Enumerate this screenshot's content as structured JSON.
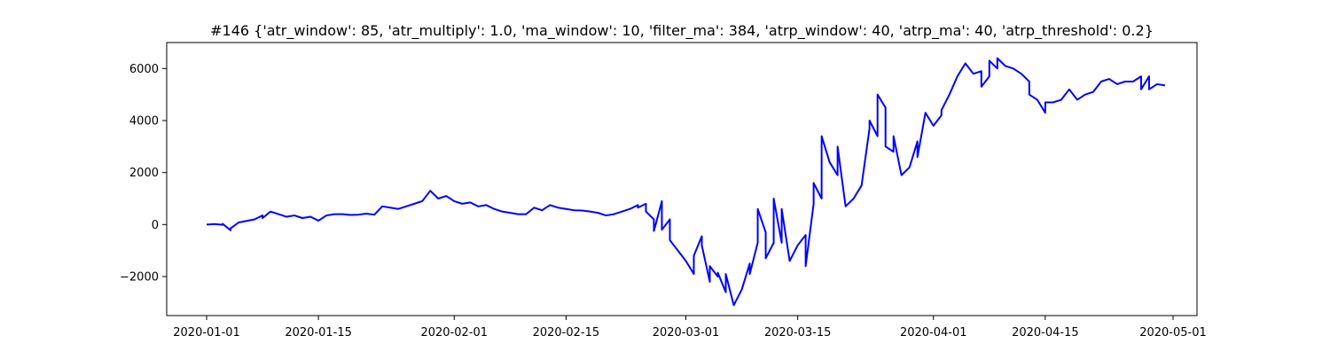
{
  "chart_data": {
    "type": "line",
    "title": "#146 {'atr_window': 85, 'atr_multiply': 1.0, 'ma_window': 10, 'filter_ma': 384, 'atrp_window': 40, 'atrp_ma': 40, 'atrp_threshold': 0.2}",
    "xlabel": "",
    "ylabel": "",
    "xlim": [
      "2019-12-27",
      "2020-05-04"
    ],
    "ylim": [
      -3500,
      7000
    ],
    "x_ticks": [
      "2020-01-01",
      "2020-01-15",
      "2020-02-01",
      "2020-02-15",
      "2020-03-01",
      "2020-03-15",
      "2020-04-01",
      "2020-04-15",
      "2020-05-01"
    ],
    "y_ticks": [
      -2000,
      0,
      2000,
      4000,
      6000
    ],
    "grid": false,
    "legend": "none",
    "series": [
      {
        "color": "#0000ff",
        "x": [
          "2020-01-01",
          "2020-01-02",
          "2020-01-03",
          "2020-01-03",
          "2020-01-04",
          "2020-01-04",
          "2020-01-05",
          "2020-01-07",
          "2020-01-08",
          "2020-01-08",
          "2020-01-09",
          "2020-01-10",
          "2020-01-11",
          "2020-01-12",
          "2020-01-13",
          "2020-01-14",
          "2020-01-15",
          "2020-01-16",
          "2020-01-17",
          "2020-01-18",
          "2020-01-19",
          "2020-01-20",
          "2020-01-21",
          "2020-01-22",
          "2020-01-23",
          "2020-01-24",
          "2020-01-25",
          "2020-01-26",
          "2020-01-27",
          "2020-01-28",
          "2020-01-29",
          "2020-01-30",
          "2020-01-31",
          "2020-02-01",
          "2020-02-02",
          "2020-02-03",
          "2020-02-04",
          "2020-02-05",
          "2020-02-06",
          "2020-02-07",
          "2020-02-08",
          "2020-02-09",
          "2020-02-10",
          "2020-02-11",
          "2020-02-12",
          "2020-02-13",
          "2020-02-14",
          "2020-02-15",
          "2020-02-16",
          "2020-02-17",
          "2020-02-18",
          "2020-02-19",
          "2020-02-20",
          "2020-02-21",
          "2020-02-22",
          "2020-02-23",
          "2020-02-24",
          "2020-02-24",
          "2020-02-25",
          "2020-02-25",
          "2020-02-26",
          "2020-02-26",
          "2020-02-27",
          "2020-02-27",
          "2020-02-28",
          "2020-02-28",
          "2020-02-29",
          "2020-03-01",
          "2020-03-02",
          "2020-03-02",
          "2020-03-03",
          "2020-03-03",
          "2020-03-04",
          "2020-03-04",
          "2020-03-05",
          "2020-03-05",
          "2020-03-06",
          "2020-03-06",
          "2020-03-07",
          "2020-03-08",
          "2020-03-09",
          "2020-03-09",
          "2020-03-10",
          "2020-03-10",
          "2020-03-11",
          "2020-03-11",
          "2020-03-12",
          "2020-03-12",
          "2020-03-13",
          "2020-03-13",
          "2020-03-14",
          "2020-03-15",
          "2020-03-16",
          "2020-03-16",
          "2020-03-17",
          "2020-03-17",
          "2020-03-18",
          "2020-03-18",
          "2020-03-19",
          "2020-03-20",
          "2020-03-20",
          "2020-03-21",
          "2020-03-22",
          "2020-03-23",
          "2020-03-24",
          "2020-03-24",
          "2020-03-25",
          "2020-03-25",
          "2020-03-26",
          "2020-03-26",
          "2020-03-27",
          "2020-03-27",
          "2020-03-28",
          "2020-03-29",
          "2020-03-30",
          "2020-03-30",
          "2020-03-31",
          "2020-04-01",
          "2020-04-02",
          "2020-04-02",
          "2020-04-03",
          "2020-04-04",
          "2020-04-05",
          "2020-04-06",
          "2020-04-07",
          "2020-04-07",
          "2020-04-08",
          "2020-04-08",
          "2020-04-09",
          "2020-04-09",
          "2020-04-10",
          "2020-04-11",
          "2020-04-12",
          "2020-04-13",
          "2020-04-13",
          "2020-04-14",
          "2020-04-15",
          "2020-04-15",
          "2020-04-16",
          "2020-04-17",
          "2020-04-18",
          "2020-04-19",
          "2020-04-20",
          "2020-04-21",
          "2020-04-22",
          "2020-04-23",
          "2020-04-24",
          "2020-04-25",
          "2020-04-26",
          "2020-04-27",
          "2020-04-27",
          "2020-04-28",
          "2020-04-28",
          "2020-04-29",
          "2020-04-30"
        ],
        "y": [
          0,
          20,
          -10,
          30,
          -220,
          -150,
          80,
          200,
          350,
          250,
          500,
          400,
          300,
          350,
          250,
          300,
          150,
          350,
          400,
          400,
          370,
          380,
          420,
          380,
          700,
          650,
          600,
          700,
          800,
          900,
          1300,
          1000,
          1100,
          900,
          800,
          850,
          700,
          750,
          600,
          500,
          450,
          400,
          400,
          650,
          550,
          750,
          650,
          600,
          550,
          540,
          500,
          450,
          350,
          400,
          500,
          600,
          750,
          650,
          800,
          500,
          200,
          -250,
          900,
          -200,
          200,
          -600,
          -1000,
          -1400,
          -1900,
          -1200,
          -450,
          -800,
          -2200,
          -1600,
          -2000,
          -1850,
          -2600,
          -1900,
          -3100,
          -2500,
          -1500,
          -1900,
          -700,
          600,
          -300,
          -1300,
          -700,
          1000,
          -700,
          600,
          -1400,
          -800,
          -400,
          -1600,
          800,
          1600,
          1000,
          3400,
          2400,
          1900,
          3000,
          700,
          1000,
          1500,
          3700,
          4000,
          3400,
          5000,
          4500,
          3000,
          2800,
          3400,
          1900,
          2200,
          3200,
          2600,
          4300,
          3800,
          4200,
          4400,
          5000,
          5700,
          6200,
          5800,
          5900,
          5300,
          5700,
          6300,
          6000,
          6400,
          6100,
          6000,
          5800,
          5500,
          5000,
          4800,
          4300,
          4700,
          4700,
          4800,
          5200,
          4800,
          5000,
          5100,
          5500,
          5600,
          5400,
          5500,
          5500,
          5700,
          5200,
          5700,
          5200,
          5400,
          5350
        ]
      }
    ]
  }
}
